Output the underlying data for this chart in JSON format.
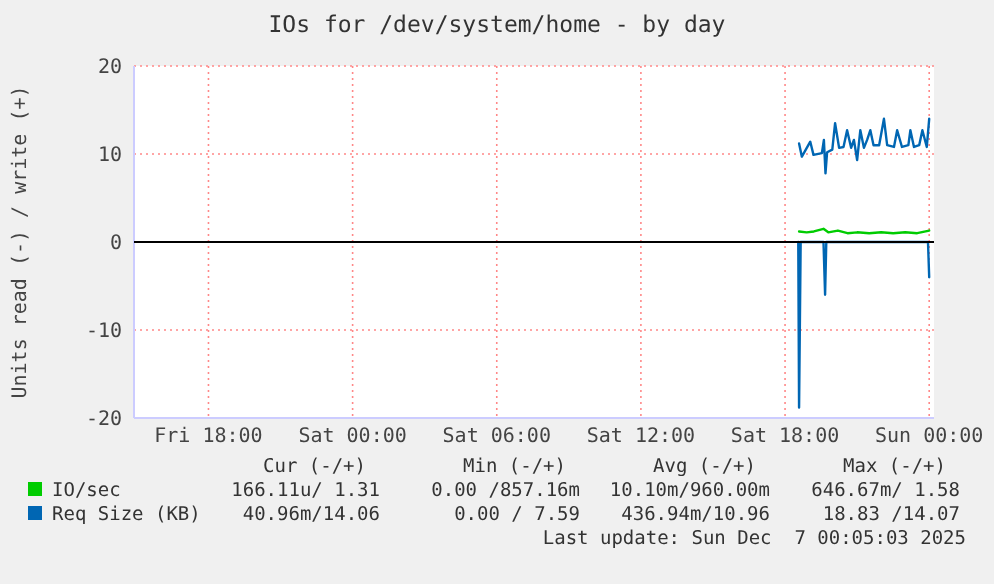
{
  "chart_data": {
    "type": "line",
    "title": "IOs for /dev/system/home - by day",
    "ylabel": "Units read (-) / write (+)",
    "xlim": [
      "2025-12-05T14:54",
      "2025-12-07T00:12"
    ],
    "xticks": [
      {
        "value": "2025-12-05T18:00",
        "label": "Fri 18:00"
      },
      {
        "value": "2025-12-06T00:00",
        "label": "Sat 00:00"
      },
      {
        "value": "2025-12-06T06:00",
        "label": "Sat 06:00"
      },
      {
        "value": "2025-12-06T12:00",
        "label": "Sat 12:00"
      },
      {
        "value": "2025-12-06T18:00",
        "label": "Sat 18:00"
      },
      {
        "value": "2025-12-07T00:00",
        "label": "Sun 00:00"
      }
    ],
    "ylim": [
      -20,
      20
    ],
    "yticks": [
      -20,
      -10,
      0,
      10,
      20
    ],
    "grid": true,
    "legend": "bottom",
    "line_style": "solid",
    "ref_lines": [
      {
        "axis": "y",
        "value": 0,
        "color": "#000000"
      }
    ],
    "series": [
      {
        "name": "IO/sec",
        "color": "#00cc00",
        "x": [
          "2025-12-06T18:35",
          "2025-12-06T18:54",
          "2025-12-06T19:12",
          "2025-12-06T19:36",
          "2025-12-06T19:48",
          "2025-12-06T20:12",
          "2025-12-06T20:36",
          "2025-12-06T21:00",
          "2025-12-06T21:30",
          "2025-12-06T22:00",
          "2025-12-06T22:30",
          "2025-12-06T23:00",
          "2025-12-06T23:30",
          "2025-12-07T00:00"
        ],
        "values": [
          1.2,
          1.1,
          1.2,
          1.5,
          1.1,
          1.3,
          1.0,
          1.1,
          1.0,
          1.1,
          1.0,
          1.1,
          1.0,
          1.3
        ]
      },
      {
        "name": "Req Size (KB)",
        "color": "#0066b3",
        "x": [
          "2025-12-06T18:35",
          "2025-12-06T18:42",
          "2025-12-06T19:03",
          "2025-12-06T19:11",
          "2025-12-06T19:32",
          "2025-12-06T19:37",
          "2025-12-06T19:41",
          "2025-12-06T19:45",
          "2025-12-06T19:58",
          "2025-12-06T20:05",
          "2025-12-06T20:15",
          "2025-12-06T20:26",
          "2025-12-06T20:35",
          "2025-12-06T20:45",
          "2025-12-06T20:52",
          "2025-12-06T21:00",
          "2025-12-06T21:08",
          "2025-12-06T21:17",
          "2025-12-06T21:25",
          "2025-12-06T21:33",
          "2025-12-06T21:41",
          "2025-12-06T21:55",
          "2025-12-06T22:07",
          "2025-12-06T22:15",
          "2025-12-06T22:32",
          "2025-12-06T22:40",
          "2025-12-06T22:52",
          "2025-12-06T23:08",
          "2025-12-06T23:13",
          "2025-12-06T23:22",
          "2025-12-06T23:35",
          "2025-12-06T23:43",
          "2025-12-06T23:54",
          "2025-12-07T00:00"
        ],
        "values": [
          11.2,
          9.7,
          11.4,
          9.9,
          10.1,
          11.6,
          7.8,
          10.2,
          10.5,
          13.5,
          10.7,
          10.8,
          12.7,
          10.7,
          11.6,
          9.3,
          12.7,
          10.7,
          11.6,
          12.7,
          11.0,
          11.0,
          14.0,
          11.0,
          10.8,
          12.7,
          10.8,
          11.0,
          12.7,
          10.8,
          11.0,
          12.7,
          10.8,
          14.0
        ]
      },
      {
        "color": "#0066b3",
        "x": [
          "2025-12-06T18:33",
          "2025-12-06T18:35",
          "2025-12-06T18:39",
          "2025-12-06T19:36",
          "2025-12-06T19:40",
          "2025-12-06T19:43",
          "2025-12-06T23:57",
          "2025-12-07T00:00"
        ],
        "values": [
          0,
          -18.8,
          0,
          0,
          -6.0,
          0,
          0,
          -4.0
        ]
      }
    ],
    "annotations": [
      "Cur (-/+)",
      "Min (-/+)",
      "Avg (-/+)",
      "Max (-/+)",
      "166.11u/ 1.31",
      "0.00 /857.16m",
      "10.10m/960.00m",
      "646.67m/ 1.58",
      "40.96m/14.06",
      "0.00 / 7.59",
      "436.94m/10.96",
      "18.83 /14.07",
      "Last update: Sun Dec  7 00:05:03 2025"
    ]
  }
}
